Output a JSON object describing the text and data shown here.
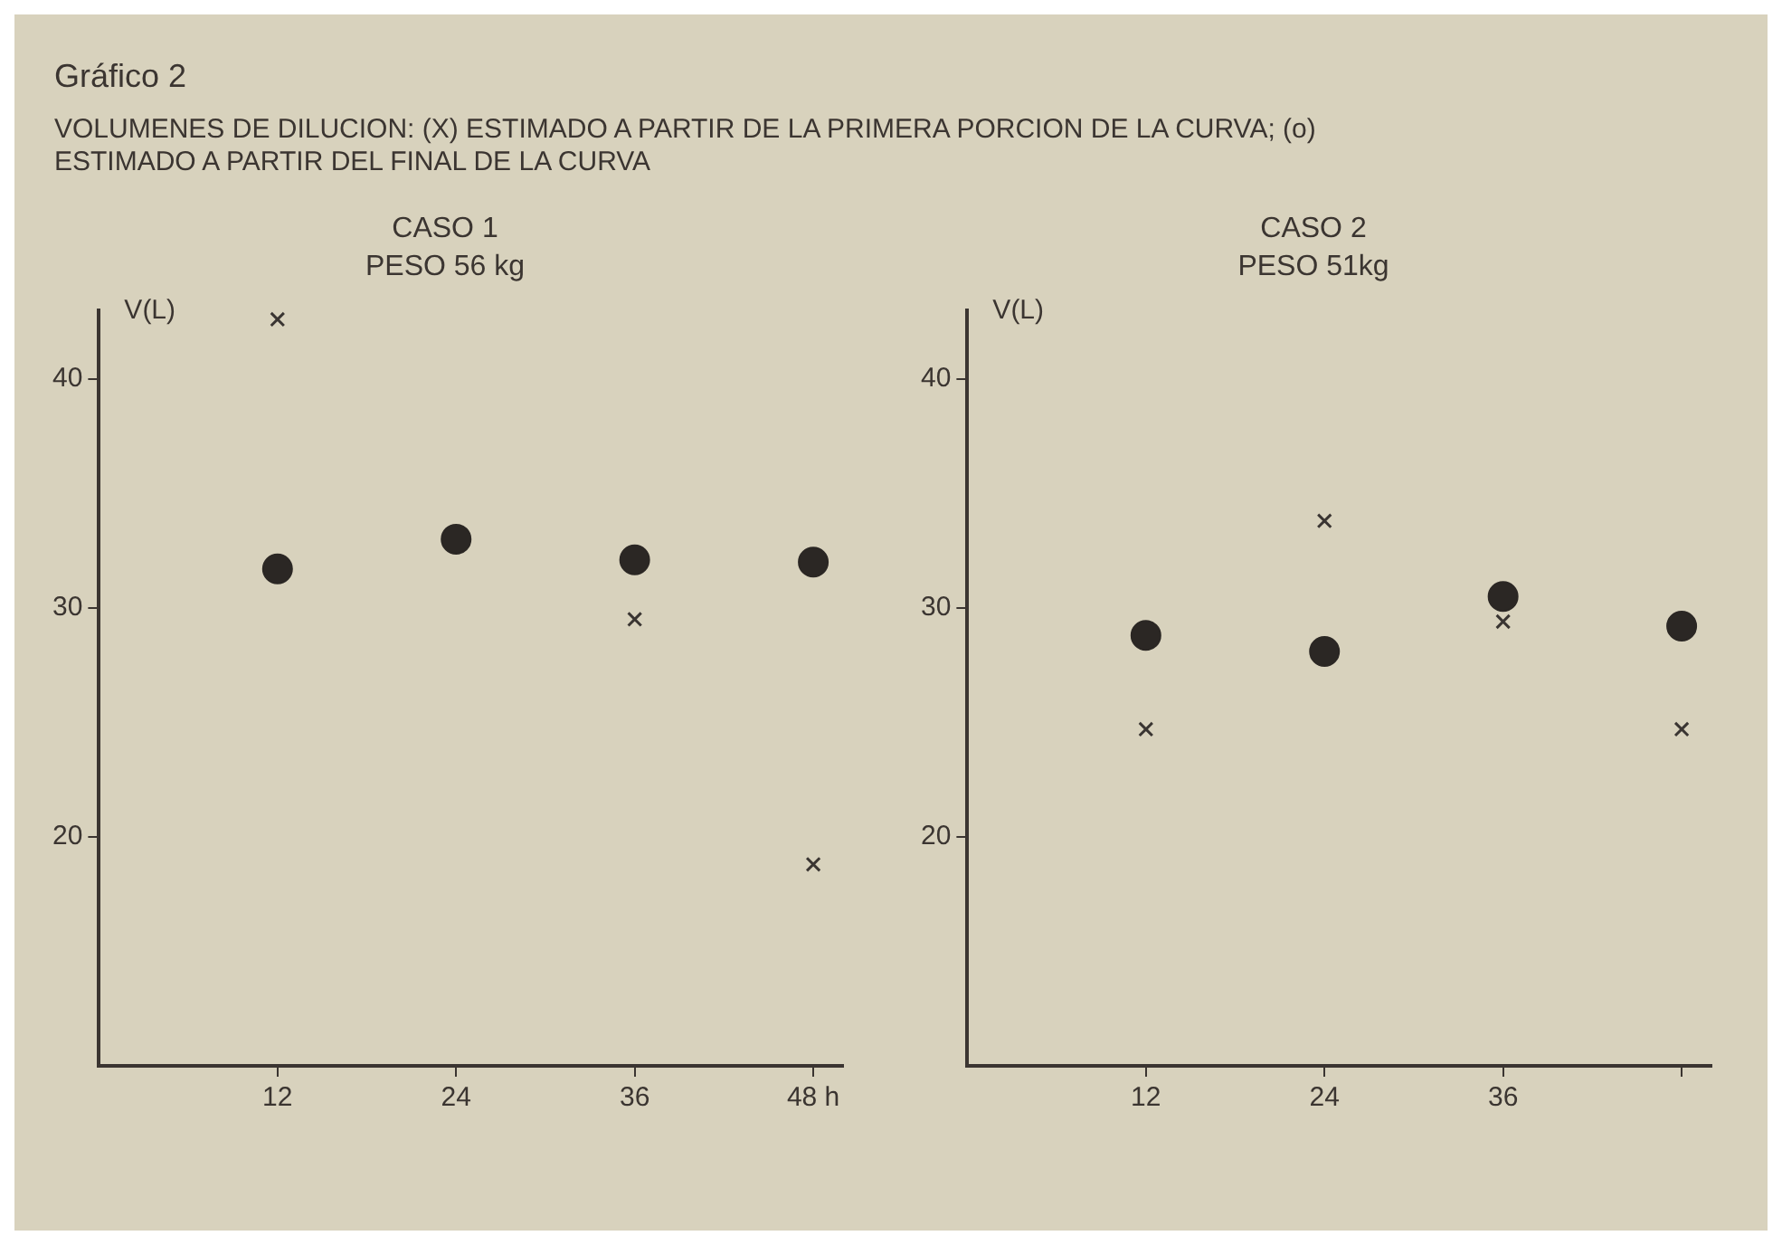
{
  "chart_data": [
    {
      "type": "other",
      "title": "Gráfico 2",
      "subtitle": "VOLUMENES DE DILUCION: (X) ESTIMADO A PARTIR DE LA PRIMERA PORCION DE LA CURVA; (o) ESTIMADO A PARTIR DEL FINAL DE LA CURVA"
    },
    {
      "type": "scatter",
      "title": "CASO 1",
      "subtitle": "PESO 56 kg",
      "ylabel": "V(L)",
      "x": [
        12,
        24,
        36,
        48
      ],
      "xlim": [
        0,
        50
      ],
      "xticks": [
        12,
        24,
        36,
        {
          "value": 48,
          "label": "48 h"
        }
      ],
      "ylim": [
        10,
        43
      ],
      "yticks": [
        20,
        30,
        40
      ],
      "grid": false,
      "legend": false,
      "series": [
        {
          "color": "#2b2724",
          "marker": "circle",
          "values": [
            31.7,
            33.0,
            32.1,
            32.0
          ]
        },
        {
          "color": "#3a3532",
          "marker": "cross",
          "values": [
            42.6,
            null,
            29.5,
            18.8
          ]
        }
      ]
    },
    {
      "type": "scatter",
      "title": "CASO 2",
      "subtitle": "PESO 51kg",
      "ylabel": "V(L)",
      "x": [
        12,
        24,
        36,
        48
      ],
      "xlim": [
        0,
        50
      ],
      "xticks": [
        12,
        24,
        36,
        {
          "value": 48,
          "label": null
        }
      ],
      "ylim": [
        10,
        43
      ],
      "yticks": [
        20,
        30,
        40
      ],
      "grid": false,
      "legend": false,
      "series": [
        {
          "color": "#2b2724",
          "marker": "circle",
          "values": [
            28.8,
            28.1,
            30.5,
            29.2
          ]
        },
        {
          "color": "#3a3532",
          "marker": "cross",
          "values": [
            24.7,
            33.8,
            29.4,
            24.7
          ]
        }
      ]
    }
  ]
}
